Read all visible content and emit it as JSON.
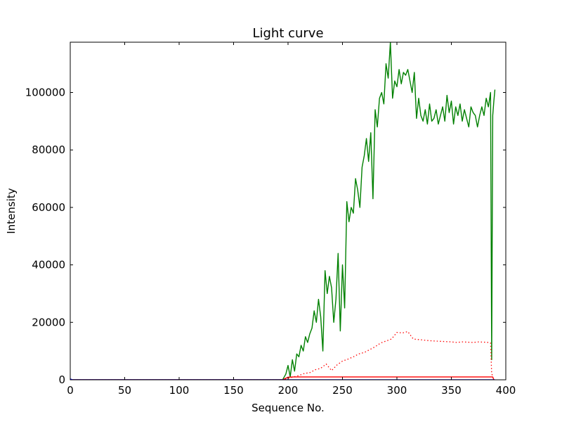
{
  "chart_data": {
    "type": "line",
    "title": "Light curve",
    "xlabel": "Sequence No.",
    "ylabel": "Intensity",
    "xlim": [
      0,
      400
    ],
    "ylim": [
      0,
      117500
    ],
    "xticks": [
      0,
      50,
      100,
      150,
      200,
      250,
      300,
      350,
      400
    ],
    "yticks": [
      0,
      20000,
      40000,
      60000,
      80000,
      100000
    ],
    "grid": false,
    "legend": "none",
    "series": [
      {
        "color": "#008000",
        "style": "solid",
        "x": [
          0,
          195,
          198,
          200,
          202,
          204,
          206,
          208,
          210,
          212,
          214,
          216,
          218,
          220,
          222,
          224,
          226,
          228,
          230,
          232,
          234,
          236,
          238,
          240,
          242,
          244,
          246,
          248,
          250,
          252,
          254,
          256,
          258,
          260,
          262,
          264,
          266,
          268,
          270,
          272,
          274,
          276,
          278,
          280,
          282,
          284,
          286,
          288,
          290,
          292,
          294,
          296,
          298,
          300,
          302,
          304,
          306,
          308,
          310,
          312,
          314,
          316,
          318,
          320,
          322,
          324,
          326,
          328,
          330,
          332,
          334,
          336,
          338,
          340,
          342,
          344,
          346,
          348,
          350,
          352,
          354,
          356,
          358,
          360,
          362,
          364,
          366,
          368,
          370,
          372,
          374,
          376,
          378,
          380,
          382,
          384,
          386,
          387,
          388,
          389,
          390
        ],
        "y": [
          0,
          0,
          2000,
          5000,
          1000,
          7000,
          3000,
          9000,
          8000,
          12000,
          10000,
          15000,
          13000,
          16000,
          18000,
          24000,
          20000,
          28000,
          22000,
          10000,
          38000,
          30000,
          36000,
          32000,
          20000,
          28000,
          44000,
          17000,
          40000,
          25000,
          62000,
          55000,
          60000,
          58000,
          70000,
          66000,
          60000,
          74000,
          78000,
          84000,
          76000,
          86000,
          63000,
          94000,
          88000,
          98000,
          100000,
          96000,
          110000,
          105000,
          117500,
          98000,
          104000,
          102000,
          108000,
          103000,
          107000,
          106000,
          108000,
          104000,
          100000,
          107000,
          91000,
          98000,
          92000,
          90000,
          94000,
          89000,
          96000,
          90000,
          91000,
          94000,
          89000,
          92000,
          95000,
          90000,
          99000,
          93000,
          97000,
          89000,
          95000,
          92000,
          96000,
          90000,
          94000,
          91000,
          88000,
          95000,
          93000,
          92000,
          88000,
          92000,
          95000,
          92000,
          98000,
          95000,
          100000,
          7000,
          92000,
          97000,
          101000
        ]
      },
      {
        "color": "#ff0000",
        "style": "dotted",
        "x": [
          0,
          195,
          200,
          205,
          210,
          215,
          220,
          225,
          230,
          235,
          240,
          245,
          250,
          255,
          260,
          265,
          270,
          275,
          280,
          285,
          290,
          295,
          300,
          305,
          310,
          315,
          320,
          325,
          330,
          335,
          340,
          345,
          350,
          355,
          360,
          365,
          370,
          375,
          380,
          385,
          386,
          387,
          388
        ],
        "y": [
          0,
          0,
          500,
          1000,
          1500,
          2200,
          2500,
          3500,
          4000,
          5500,
          3200,
          5200,
          6500,
          7200,
          8000,
          9000,
          9500,
          10500,
          11500,
          12800,
          13500,
          14200,
          16500,
          16300,
          16800,
          14200,
          14000,
          13800,
          13600,
          13500,
          13400,
          13300,
          13200,
          13000,
          13200,
          13100,
          13000,
          13200,
          13100,
          13000,
          12800,
          2000,
          1500
        ]
      },
      {
        "color": "#ff0000",
        "style": "solid",
        "x": [
          0,
          195,
          200,
          205,
          388,
          389
        ],
        "y": [
          0,
          0,
          900,
          1000,
          1000,
          0
        ]
      },
      {
        "color": "#0000ff",
        "style": "solid",
        "x": [
          0,
          2,
          196,
          390
        ],
        "y": [
          300,
          0,
          0,
          0
        ]
      }
    ]
  }
}
